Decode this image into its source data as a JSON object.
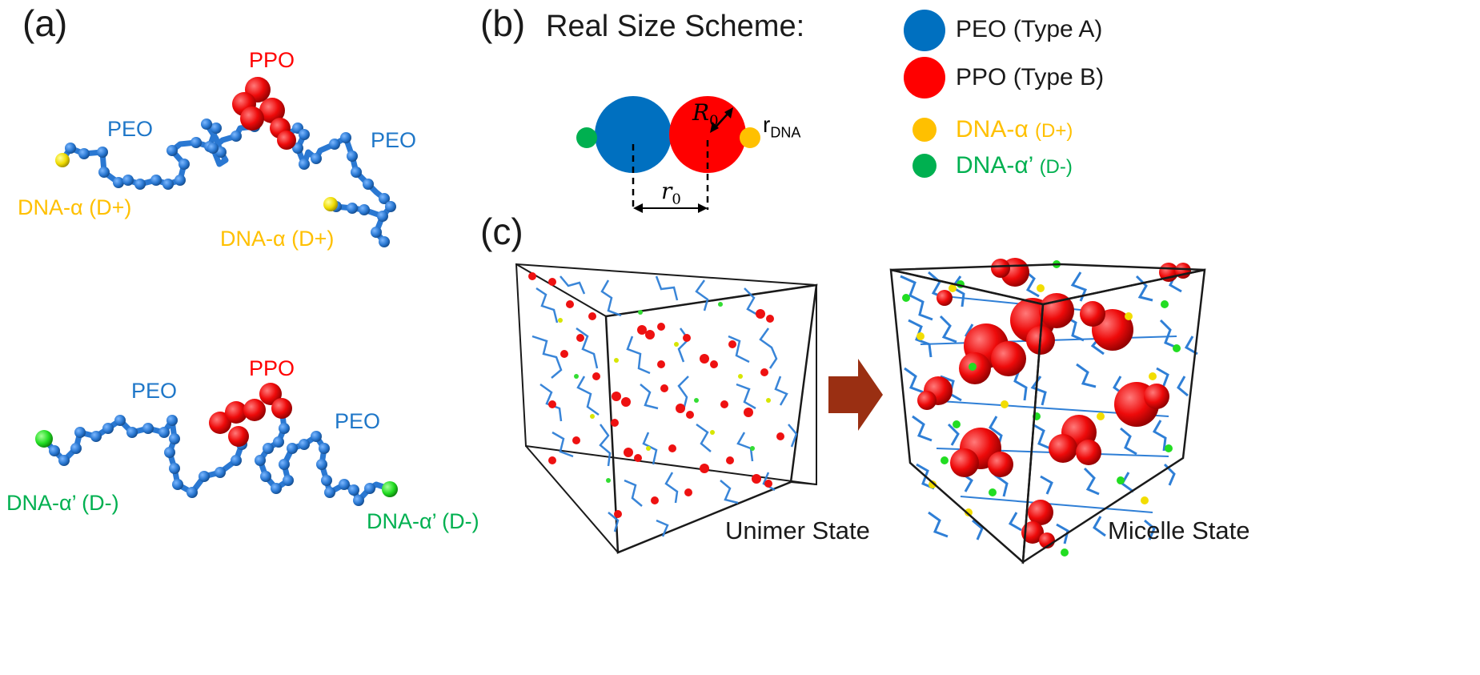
{
  "panels": {
    "a": "(a)",
    "b": "(b)",
    "c": "(c)"
  },
  "scheme": {
    "title": "Real Size Scheme:",
    "big_radius_label": "R",
    "big_radius_sub": "0",
    "small_radius_label": "r",
    "small_radius_sub": "DNA",
    "distance_label": "r",
    "distance_sub": "0"
  },
  "legend": [
    {
      "label": "PEO (Type A)",
      "color": "#0070c0"
    },
    {
      "label": "PPO (Type B)",
      "color": "#ff0000"
    },
    {
      "label": "DNA-α  ",
      "sub": "(D+)",
      "color": "#ffc000"
    },
    {
      "label": "DNA-α’ ",
      "sub": "(D-)",
      "color": "#00b050"
    }
  ],
  "chain_top": {
    "ppo": "PPO",
    "peo_left": "PEO",
    "peo_right": "PEO",
    "dna_left": "DNA-α (D+)",
    "dna_right": "DNA-α (D+)"
  },
  "chain_bottom": {
    "ppo": "PPO",
    "peo_left": "PEO",
    "peo_right": "PEO",
    "dna_left": "DNA-α’ (D-)",
    "dna_right": "DNA-α’ (D-)"
  },
  "states": {
    "left": "Unimer State",
    "right": "Micelle State"
  },
  "colors": {
    "peo": "#2f7fd6",
    "ppo": "#ff0000",
    "dna_plus": "#f2dd00",
    "dna_minus": "#22dd22",
    "label_peo": "#1f77c8",
    "label_dna_plus": "#ffc000",
    "label_dna_minus": "#00b050",
    "arrow": "#9a2f12"
  }
}
